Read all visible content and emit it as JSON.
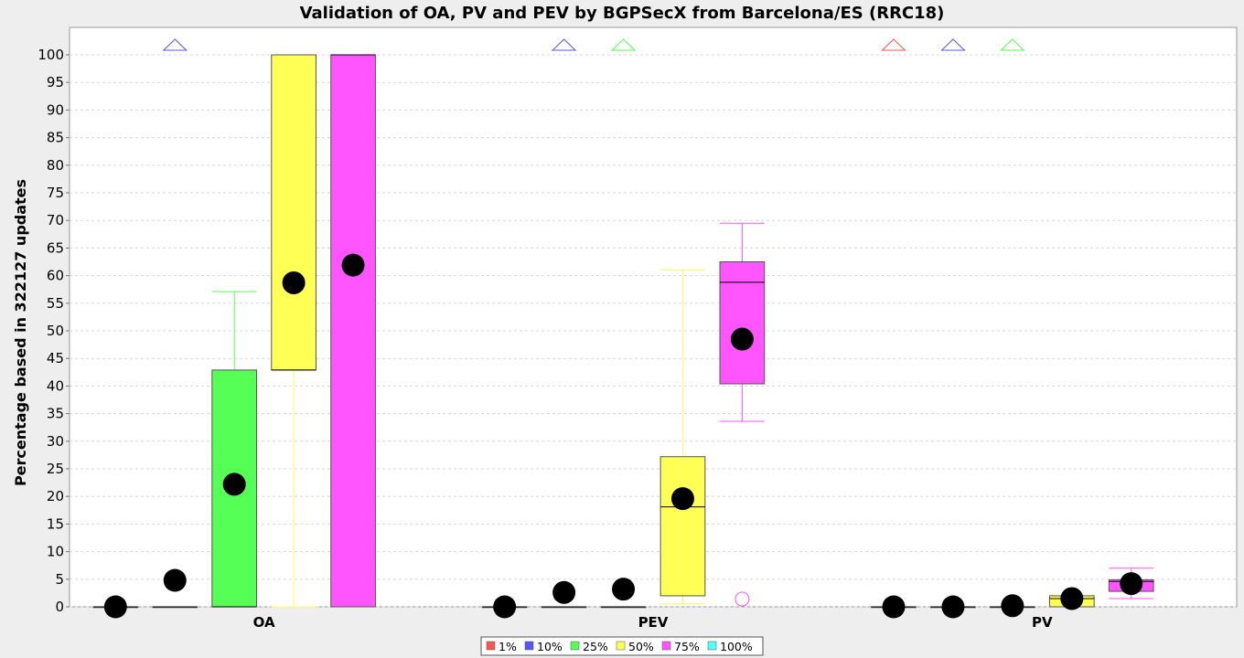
{
  "chart_data": {
    "type": "boxplot",
    "title": "Validation of OA, PV and PEV by BGPSecX from Barcelona/ES (RRC18)",
    "xlabel": "",
    "ylabel": "Percentage based in 322127 updates",
    "ylim": [
      0,
      100
    ],
    "yticks": [
      0,
      5,
      10,
      15,
      20,
      25,
      30,
      35,
      40,
      45,
      50,
      55,
      60,
      65,
      70,
      75,
      80,
      85,
      90,
      95,
      100
    ],
    "grid": true,
    "legend_position": "bottom",
    "categories": [
      "OA",
      "PEV",
      "PV"
    ],
    "series": [
      {
        "name": "1%",
        "color": "#ff5555"
      },
      {
        "name": "10%",
        "color": "#5555ff"
      },
      {
        "name": "25%",
        "color": "#55ff55"
      },
      {
        "name": "50%",
        "color": "#ffff55"
      },
      {
        "name": "75%",
        "color": "#ff55ff"
      },
      {
        "name": "100%",
        "color": "#55ffff"
      }
    ],
    "boxes": [
      {
        "category": "OA",
        "series": "1%",
        "q1": 0,
        "median": 0,
        "q3": 0,
        "whisker_low": 0,
        "whisker_high": 0,
        "mean": 0,
        "outliers": [],
        "far_out_above": false
      },
      {
        "category": "OA",
        "series": "10%",
        "q1": 0,
        "median": 0,
        "q3": 0,
        "whisker_low": 0,
        "whisker_high": 0,
        "mean": 4.8,
        "outliers": [],
        "far_out_above": true
      },
      {
        "category": "OA",
        "series": "25%",
        "q1": 0,
        "median": 0,
        "q3": 42.9,
        "whisker_low": 0,
        "whisker_high": 57.1,
        "mean": 22.2,
        "outliers": [],
        "far_out_above": false
      },
      {
        "category": "OA",
        "series": "50%",
        "q1": 42.9,
        "median": 42.9,
        "q3": 100,
        "whisker_low": 0,
        "whisker_high": 100,
        "mean": 58.7,
        "outliers": [],
        "far_out_above": false
      },
      {
        "category": "OA",
        "series": "75%",
        "q1": 0,
        "median": 100,
        "q3": 100,
        "whisker_low": 0,
        "whisker_high": 100,
        "mean": 61.9,
        "outliers": [],
        "far_out_above": false
      },
      {
        "category": "PEV",
        "series": "1%",
        "q1": 0,
        "median": 0,
        "q3": 0,
        "whisker_low": 0,
        "whisker_high": 0,
        "mean": 0,
        "outliers": [],
        "far_out_above": false
      },
      {
        "category": "PEV",
        "series": "10%",
        "q1": 0,
        "median": 0,
        "q3": 0,
        "whisker_low": 0,
        "whisker_high": 0,
        "mean": 2.6,
        "outliers": [],
        "far_out_above": true
      },
      {
        "category": "PEV",
        "series": "25%",
        "q1": 0,
        "median": 0,
        "q3": 0,
        "whisker_low": 0,
        "whisker_high": 0,
        "mean": 3.2,
        "outliers": [],
        "far_out_above": true
      },
      {
        "category": "PEV",
        "series": "50%",
        "q1": 2.0,
        "median": 18.1,
        "q3": 27.2,
        "whisker_low": 0.6,
        "whisker_high": 61.0,
        "mean": 19.6,
        "outliers": [],
        "far_out_above": false
      },
      {
        "category": "PEV",
        "series": "75%",
        "q1": 40.4,
        "median": 58.8,
        "q3": 62.5,
        "whisker_low": 33.6,
        "whisker_high": 69.5,
        "mean": 48.5,
        "outliers": [
          1.4
        ],
        "far_out_above": false
      },
      {
        "category": "PV",
        "series": "1%",
        "q1": 0,
        "median": 0,
        "q3": 0,
        "whisker_low": 0,
        "whisker_high": 0,
        "mean": 0,
        "outliers": [],
        "far_out_above": true
      },
      {
        "category": "PV",
        "series": "10%",
        "q1": 0,
        "median": 0,
        "q3": 0,
        "whisker_low": 0,
        "whisker_high": 0,
        "mean": 0,
        "outliers": [],
        "far_out_above": true
      },
      {
        "category": "PV",
        "series": "25%",
        "q1": 0,
        "median": 0,
        "q3": 0,
        "whisker_low": 0,
        "whisker_high": 0,
        "mean": 0.2,
        "outliers": [],
        "far_out_above": true
      },
      {
        "category": "PV",
        "series": "50%",
        "q1": 0,
        "median": 1.5,
        "q3": 2.0,
        "whisker_low": 0,
        "whisker_high": 2.0,
        "mean": 1.5,
        "outliers": [],
        "far_out_above": false
      },
      {
        "category": "PV",
        "series": "75%",
        "q1": 2.8,
        "median": 4.6,
        "q3": 4.9,
        "whisker_low": 1.5,
        "whisker_high": 7.0,
        "mean": 4.2,
        "outliers": [],
        "far_out_above": false
      }
    ]
  }
}
